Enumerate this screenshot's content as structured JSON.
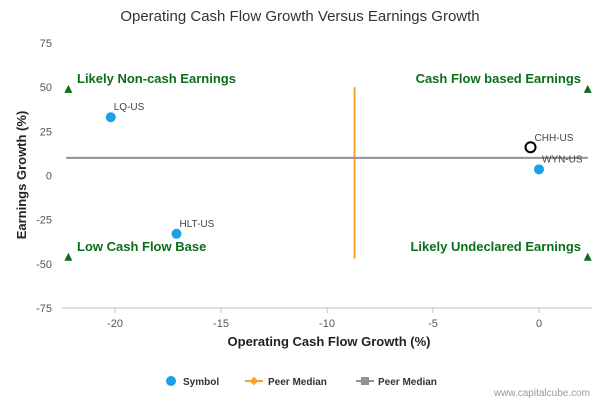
{
  "colors": {
    "symbol": "#1aa1e6",
    "peer_median_x": "#f7a520",
    "peer_median_y": "#8f909a",
    "quadrant_text": "#0b6e1b",
    "triangle": "#0b6e1b"
  },
  "credit": "www.capitalcube.com",
  "chart_data": {
    "type": "scatter",
    "title": "Operating Cash Flow Growth Versus Earnings Growth",
    "xlabel": "Operating Cash Flow Growth (%)",
    "ylabel": "Earnings Growth (%)",
    "xlim": [
      -22.5,
      2.5
    ],
    "ylim": [
      -75,
      75
    ],
    "x_ticks": [
      {
        "value": -20,
        "label": "-20"
      },
      {
        "value": -15,
        "label": "-15"
      },
      {
        "value": -10,
        "label": "-10"
      },
      {
        "value": -5,
        "label": "-5"
      },
      {
        "value": 0,
        "label": "0"
      }
    ],
    "y_ticks": [
      {
        "value": 75,
        "label": "75"
      },
      {
        "value": 50,
        "label": "50"
      },
      {
        "value": 25,
        "label": "25"
      },
      {
        "value": 0,
        "label": "0"
      },
      {
        "value": -25,
        "label": "-25"
      },
      {
        "value": -50,
        "label": "-50"
      },
      {
        "value": -75,
        "label": "-75"
      }
    ],
    "grid": false,
    "series": [
      {
        "name": "Symbol",
        "points": [
          {
            "label": "LQ-US",
            "x": -20.2,
            "y": 33
          },
          {
            "label": "HLT-US",
            "x": -17.1,
            "y": -33
          },
          {
            "label": "WYN-US",
            "x": 0.0,
            "y": 3.5
          }
        ]
      }
    ],
    "highlight": {
      "label": "CHH-US",
      "x": -0.4,
      "y": 16
    },
    "peer_median_x": {
      "name": "Peer Median",
      "value": -8.7
    },
    "peer_median_y": {
      "name": "Peer Median",
      "value": 10
    },
    "quadrants": [
      {
        "label": "Likely Non-cash Earnings",
        "position": "top-left"
      },
      {
        "label": "Cash Flow based Earnings",
        "position": "top-right"
      },
      {
        "label": "Low Cash Flow Base",
        "position": "bottom-left"
      },
      {
        "label": "Likely Undeclared Earnings",
        "position": "bottom-right"
      }
    ],
    "legend": {
      "placement": "bottom",
      "items": [
        "Symbol",
        "Peer Median",
        "Peer Median"
      ]
    }
  }
}
